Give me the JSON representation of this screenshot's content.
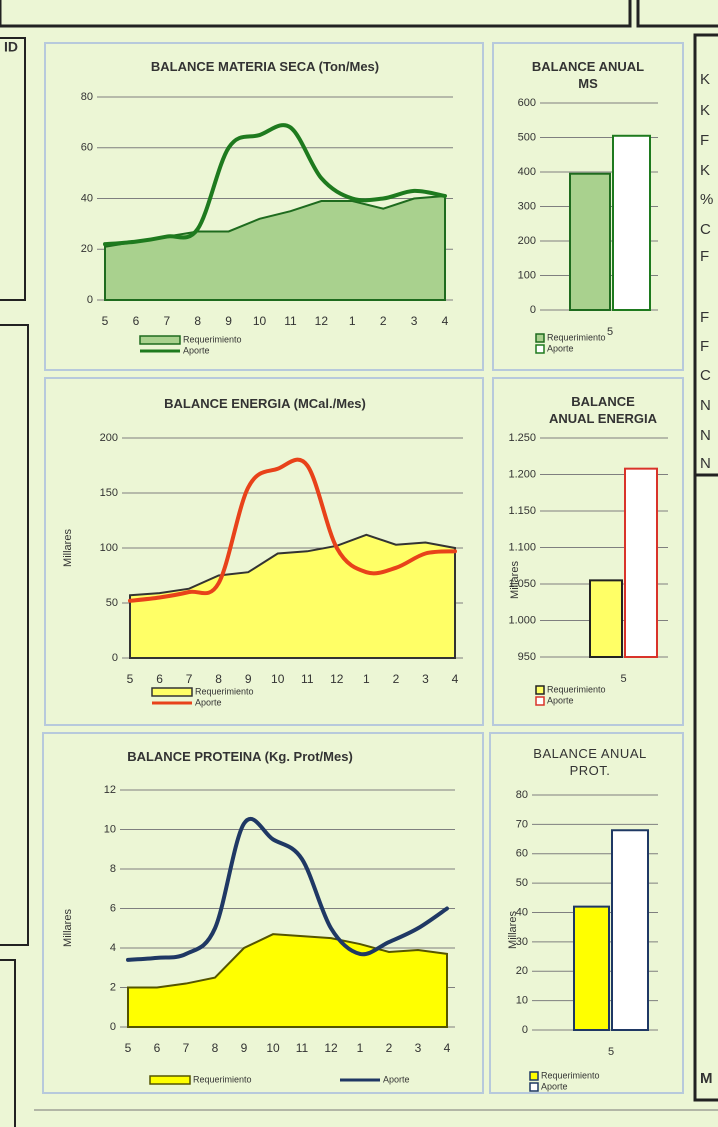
{
  "left_panel": {
    "label": "ID"
  },
  "side_panel": {
    "labels": [
      "K",
      "K",
      "F",
      "K",
      "%",
      "C",
      "F",
      "F",
      "F",
      "C",
      "N",
      "N",
      "N",
      "M"
    ]
  },
  "chart_data": [
    {
      "type": "combo",
      "title": "BALANCE MATERIA SECA (Ton/Mes)",
      "categories": [
        "5",
        "6",
        "7",
        "8",
        "9",
        "10",
        "11",
        "12",
        "1",
        "2",
        "3",
        "4"
      ],
      "series": [
        {
          "name": "Requerimiento",
          "style": "area",
          "color": "#a9d18e",
          "border": "#1e6b1e",
          "values": [
            21,
            23,
            25,
            27,
            27,
            32,
            35,
            39,
            39,
            36,
            40,
            41
          ]
        },
        {
          "name": "Aporte",
          "style": "line",
          "color": "#1e7a1e",
          "values": [
            22,
            23,
            25,
            28,
            60,
            65,
            68,
            48,
            40,
            40,
            43,
            41
          ]
        }
      ],
      "ylim": [
        0,
        80
      ],
      "yticks": [
        0,
        20,
        40,
        60,
        80
      ],
      "grid": true
    },
    {
      "type": "bar",
      "title": "BALANCE ANUAL MS",
      "categories": [
        "5"
      ],
      "series": [
        {
          "name": "Requerimiento",
          "color": "#a9d18e",
          "border": "#1e6b1e",
          "values": [
            395
          ]
        },
        {
          "name": "Aporte",
          "color": "#ffffff",
          "border": "#1e7a1e",
          "values": [
            505
          ]
        }
      ],
      "ylim": [
        0,
        600
      ],
      "yticks": [
        0,
        100,
        200,
        300,
        400,
        500,
        600
      ],
      "grid": true
    },
    {
      "type": "combo",
      "title": "BALANCE ENERGIA (MCal./Mes)",
      "y_label": "Millares",
      "categories": [
        "5",
        "6",
        "7",
        "8",
        "9",
        "10",
        "11",
        "12",
        "1",
        "2",
        "3",
        "4"
      ],
      "series": [
        {
          "name": "Requerimiento",
          "style": "area",
          "color": "#ffff66",
          "border": "#333333",
          "values": [
            57,
            59,
            63,
            75,
            78,
            95,
            97,
            102,
            112,
            103,
            105,
            100
          ]
        },
        {
          "name": "Aporte",
          "style": "line",
          "color": "#e8421a",
          "values": [
            52,
            55,
            60,
            68,
            155,
            172,
            175,
            100,
            78,
            82,
            95,
            97
          ]
        }
      ],
      "ylim": [
        0,
        200
      ],
      "yticks": [
        0,
        50,
        100,
        150,
        200
      ],
      "grid": true
    },
    {
      "type": "bar",
      "title": "BALANCE ANUAL ENERGIA",
      "y_label": "Millares",
      "categories": [
        "5"
      ],
      "series": [
        {
          "name": "Requerimiento",
          "color": "#ffff66",
          "border": "#222222",
          "values": [
            1055
          ]
        },
        {
          "name": "Aporte",
          "color": "#ffffff",
          "border": "#d9332a",
          "values": [
            1208
          ]
        }
      ],
      "ylim": [
        950,
        1250
      ],
      "yticks": [
        950,
        {
          "value": 1000,
          "label": "1.000"
        },
        {
          "value": 1050,
          "label": "1.050"
        },
        {
          "value": 1100,
          "label": "1.100"
        },
        {
          "value": 1150,
          "label": "1.150"
        },
        {
          "value": 1200,
          "label": "1.200"
        },
        {
          "value": 1250,
          "label": "1.250"
        }
      ],
      "grid": true
    },
    {
      "type": "combo",
      "title": "BALANCE PROTEINA (Kg. Prot/Mes)",
      "y_label": "Millares",
      "categories": [
        "5",
        "6",
        "7",
        "8",
        "9",
        "10",
        "11",
        "12",
        "1",
        "2",
        "3",
        "4"
      ],
      "series": [
        {
          "name": "Requerimiento",
          "style": "area",
          "color": "#ffff00",
          "border": "#555500",
          "values": [
            2.0,
            2.0,
            2.2,
            2.5,
            4.0,
            4.7,
            4.6,
            4.5,
            4.2,
            3.8,
            3.9,
            3.7
          ]
        },
        {
          "name": "Aporte",
          "style": "line",
          "color": "#1f3864",
          "values": [
            3.4,
            3.5,
            3.7,
            5.0,
            10.3,
            9.5,
            8.5,
            5.0,
            3.7,
            4.3,
            5.0,
            6.0
          ]
        }
      ],
      "ylim": [
        0,
        12
      ],
      "yticks": [
        0,
        2,
        4,
        6,
        8,
        10,
        12
      ],
      "grid": true
    },
    {
      "type": "bar",
      "title": "BALANCE ANUAL PROT.",
      "y_label": "Millares",
      "categories": [
        "5"
      ],
      "series": [
        {
          "name": "Requerimiento",
          "color": "#ffff00",
          "border": "#1f3864",
          "values": [
            42
          ]
        },
        {
          "name": "Aporte",
          "color": "#ffffff",
          "border": "#1f3864",
          "values": [
            68
          ]
        }
      ],
      "ylim": [
        0,
        80
      ],
      "yticks": [
        0,
        10,
        20,
        30,
        40,
        50,
        60,
        70,
        80
      ],
      "grid": true
    }
  ]
}
